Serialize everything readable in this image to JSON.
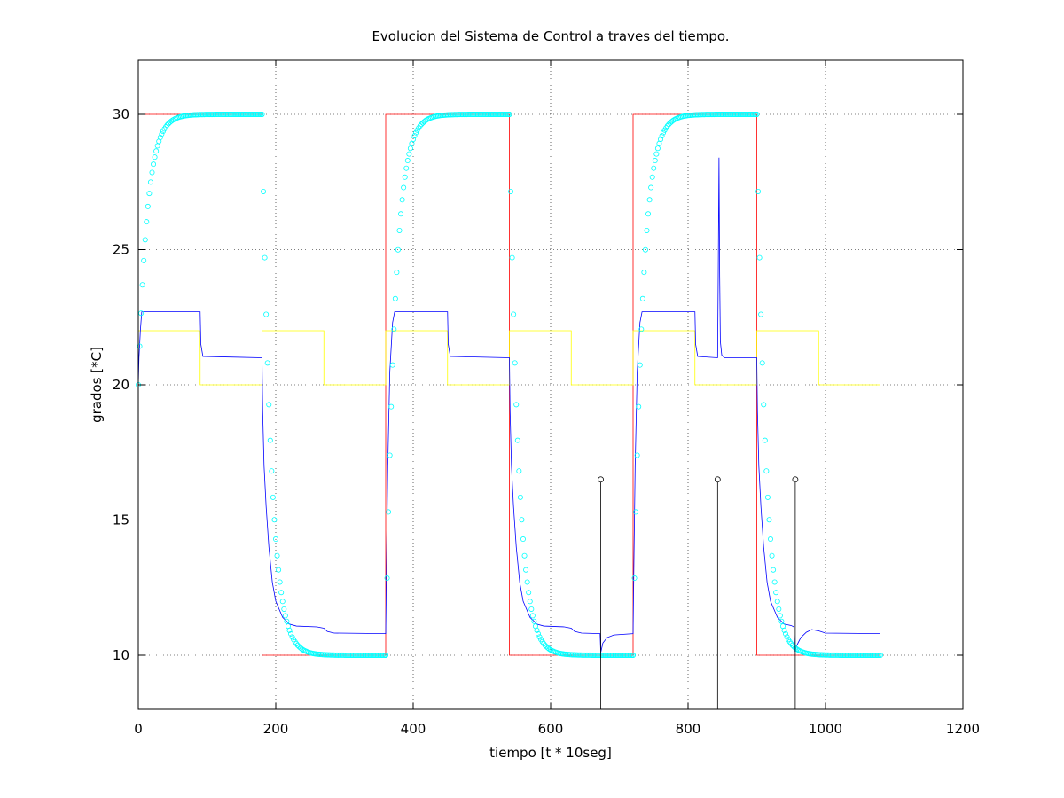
{
  "chart_data": {
    "type": "line",
    "title": "Evolucion del Sistema de Control a traves del tiempo.",
    "xlabel": "tiempo [t * 10seg]",
    "ylabel": "grados [*C]",
    "xlim": [
      0,
      1200
    ],
    "ylim": [
      8,
      32
    ],
    "xticks": [
      0,
      200,
      400,
      600,
      800,
      1000,
      1200
    ],
    "yticks": [
      10,
      15,
      20,
      25,
      30
    ],
    "grid": true,
    "legend": "none",
    "series": [
      {
        "style": "step",
        "color": "#ff0000",
        "points": [
          [
            0,
            30
          ],
          [
            180,
            30
          ],
          [
            180,
            10
          ],
          [
            360,
            10
          ],
          [
            360,
            30
          ],
          [
            540,
            30
          ],
          [
            540,
            10
          ],
          [
            720,
            10
          ],
          [
            720,
            30
          ],
          [
            900,
            30
          ],
          [
            900,
            10
          ],
          [
            1080,
            10
          ]
        ]
      },
      {
        "style": "step",
        "color": "#ffff00",
        "points": [
          [
            0,
            22
          ],
          [
            90,
            22
          ],
          [
            90,
            20
          ],
          [
            180,
            20
          ],
          [
            180,
            22
          ],
          [
            270,
            22
          ],
          [
            270,
            20
          ],
          [
            360,
            20
          ],
          [
            360,
            22
          ],
          [
            450,
            22
          ],
          [
            450,
            20
          ],
          [
            540,
            20
          ],
          [
            540,
            22
          ],
          [
            630,
            22
          ],
          [
            630,
            20
          ],
          [
            720,
            20
          ],
          [
            720,
            22
          ],
          [
            810,
            22
          ],
          [
            810,
            20
          ],
          [
            900,
            20
          ],
          [
            900,
            22
          ],
          [
            990,
            22
          ],
          [
            990,
            20
          ],
          [
            1080,
            20
          ]
        ]
      },
      {
        "style": "line",
        "color": "#0000ff",
        "points": [
          [
            0,
            20
          ],
          [
            1,
            21
          ],
          [
            3,
            22
          ],
          [
            5,
            22.7
          ],
          [
            90,
            22.7
          ],
          [
            91,
            21.5
          ],
          [
            94,
            21.05
          ],
          [
            180,
            21
          ],
          [
            181,
            19
          ],
          [
            183,
            17
          ],
          [
            186,
            15.5
          ],
          [
            190,
            14
          ],
          [
            195,
            12.7
          ],
          [
            200,
            12
          ],
          [
            210,
            11.4
          ],
          [
            220,
            11.15
          ],
          [
            230,
            11.08
          ],
          [
            260,
            11.05
          ],
          [
            270,
            11.0
          ],
          [
            275,
            10.88
          ],
          [
            285,
            10.82
          ],
          [
            360,
            10.8
          ],
          [
            361,
            13
          ],
          [
            363,
            17
          ],
          [
            366,
            20.5
          ],
          [
            370,
            22.3
          ],
          [
            373,
            22.7
          ],
          [
            450,
            22.7
          ],
          [
            451,
            21.5
          ],
          [
            454,
            21.05
          ],
          [
            540,
            21
          ],
          [
            541,
            19
          ],
          [
            543,
            17
          ],
          [
            546,
            15.5
          ],
          [
            550,
            14
          ],
          [
            555,
            12.7
          ],
          [
            560,
            12
          ],
          [
            570,
            11.4
          ],
          [
            580,
            11.15
          ],
          [
            590,
            11.08
          ],
          [
            620,
            11.05
          ],
          [
            630,
            11.0
          ],
          [
            635,
            10.88
          ],
          [
            645,
            10.82
          ],
          [
            672,
            10.8
          ],
          [
            673,
            10.1
          ],
          [
            676,
            10.45
          ],
          [
            682,
            10.65
          ],
          [
            692,
            10.75
          ],
          [
            720,
            10.8
          ],
          [
            721,
            13
          ],
          [
            723,
            17
          ],
          [
            726,
            20.5
          ],
          [
            730,
            22.3
          ],
          [
            733,
            22.7
          ],
          [
            810,
            22.7
          ],
          [
            811,
            21.5
          ],
          [
            814,
            21.05
          ],
          [
            843,
            21
          ],
          [
            844,
            24.5
          ],
          [
            845,
            28.4
          ],
          [
            846,
            24.0
          ],
          [
            847,
            21.6
          ],
          [
            849,
            21.1
          ],
          [
            853,
            21.0
          ],
          [
            900,
            21
          ],
          [
            901,
            19
          ],
          [
            903,
            17
          ],
          [
            906,
            15.5
          ],
          [
            910,
            14
          ],
          [
            915,
            12.7
          ],
          [
            920,
            12
          ],
          [
            930,
            11.4
          ],
          [
            940,
            11.15
          ],
          [
            950,
            11.1
          ],
          [
            954,
            11.05
          ],
          [
            955,
            10.15
          ],
          [
            958,
            10.35
          ],
          [
            964,
            10.65
          ],
          [
            972,
            10.85
          ],
          [
            980,
            10.95
          ],
          [
            990,
            10.9
          ],
          [
            1000,
            10.82
          ],
          [
            1080,
            10.8
          ]
        ]
      },
      {
        "style": "markers",
        "marker": "circle",
        "color": "#00ffff",
        "model": "first-order exponential approach to setpoint, tau = 13",
        "segments": [
          {
            "t_start": 0,
            "t_end": 180,
            "from": 20,
            "to": 30
          },
          {
            "t_start": 180,
            "t_end": 360,
            "from": 30,
            "to": 10
          },
          {
            "t_start": 360,
            "t_end": 540,
            "from": 10,
            "to": 30
          },
          {
            "t_start": 540,
            "t_end": 720,
            "from": 30,
            "to": 10
          },
          {
            "t_start": 720,
            "t_end": 900,
            "from": 10,
            "to": 30
          },
          {
            "t_start": 900,
            "t_end": 1080,
            "from": 30,
            "to": 10
          }
        ],
        "tau": 13,
        "step": 2
      },
      {
        "style": "stem",
        "marker": "circle",
        "color": "#000000",
        "points": [
          [
            673,
            16.5
          ],
          [
            843,
            16.5
          ],
          [
            956,
            16.5
          ]
        ]
      }
    ]
  }
}
